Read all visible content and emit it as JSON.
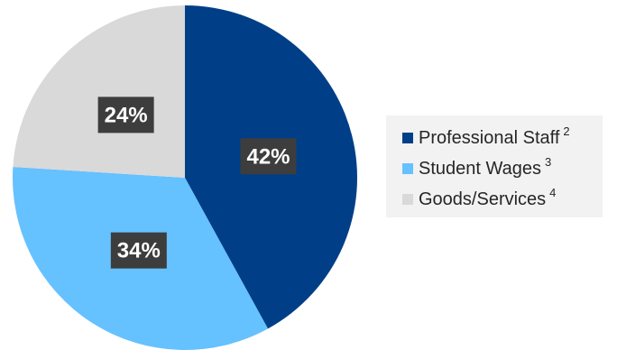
{
  "chart_data": {
    "type": "pie",
    "slices": [
      {
        "label": "Professional Staff",
        "footnote": "2",
        "value": 42,
        "value_label": "42%",
        "color": "#003f87"
      },
      {
        "label": "Student Wages",
        "footnote": "3",
        "value": 34,
        "value_label": "34%",
        "color": "#66c1ff"
      },
      {
        "label": "Goods/Services",
        "footnote": "4",
        "value": 24,
        "value_label": "24%",
        "color": "#d9d9d9"
      }
    ],
    "legend_position": "right"
  }
}
